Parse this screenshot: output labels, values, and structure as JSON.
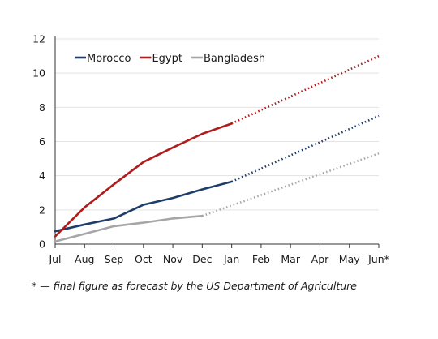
{
  "chart_data": {
    "type": "line",
    "categories": [
      "Jul",
      "Aug",
      "Sep",
      "Oct",
      "Nov",
      "Dec",
      "Jan",
      "Feb",
      "Mar",
      "Apr",
      "May",
      "Jun*"
    ],
    "ylim": [
      0,
      12
    ],
    "yticks": [
      "0",
      "2",
      "4",
      "6",
      "8",
      "10",
      "12"
    ],
    "grid": "horizontal",
    "legend_position": "top-left",
    "series": [
      {
        "name": "Morocco",
        "color": "#1f3d6b",
        "values": [
          0.75,
          1.15,
          1.5,
          2.3,
          2.7,
          3.2,
          3.65,
          null,
          null,
          null,
          null,
          7.5
        ],
        "actual_through_index": 6,
        "forecast_style": "dotted"
      },
      {
        "name": "Egypt",
        "color": "#b01c1c",
        "values": [
          0.45,
          2.15,
          3.5,
          4.8,
          5.65,
          6.45,
          7.05,
          null,
          null,
          null,
          null,
          11.0
        ],
        "actual_through_index": 6,
        "forecast_style": "dotted"
      },
      {
        "name": "Bangladesh",
        "color": "#a6a6a6",
        "values": [
          0.15,
          0.6,
          1.05,
          1.25,
          1.5,
          1.65,
          null,
          null,
          null,
          null,
          null,
          5.3
        ],
        "actual_through_index": 5,
        "forecast_style": "dotted"
      }
    ]
  },
  "footnote": "* — final figure as forecast by the US Department of Agriculture"
}
